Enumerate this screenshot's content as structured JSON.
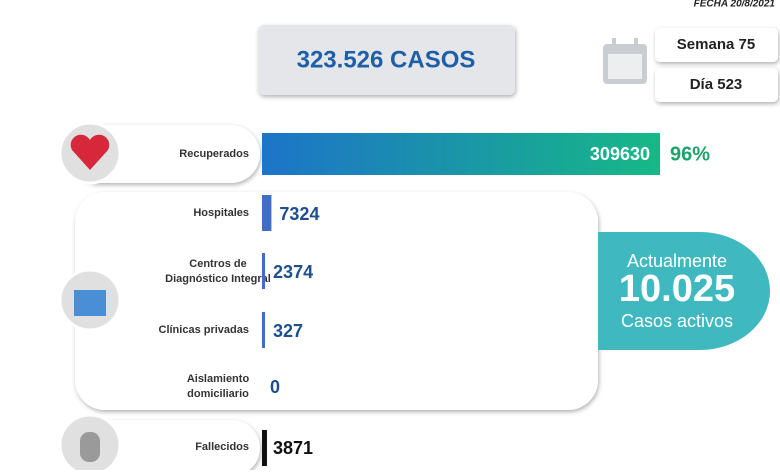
{
  "header": {
    "date": "FECHA 20/8/2021",
    "total": "323.526 CASOS",
    "week": "Semana 75",
    "day": "Día 523"
  },
  "recovered": {
    "label": "Recuperados",
    "value": 309630,
    "percent": "96%"
  },
  "places": [
    {
      "label": "Hospitales",
      "value": 7324
    },
    {
      "label": "Centros de Diagnóstico Integral",
      "value": 2374
    },
    {
      "label": "Clínicas privadas",
      "value": 327
    },
    {
      "label": "Aislamiento domiciliario",
      "value": 0
    }
  ],
  "active": {
    "line1": "Actualmente",
    "number": "10.025",
    "line2": "Casos activos"
  },
  "deaths": {
    "label": "Fallecidos",
    "value": 3871
  }
}
